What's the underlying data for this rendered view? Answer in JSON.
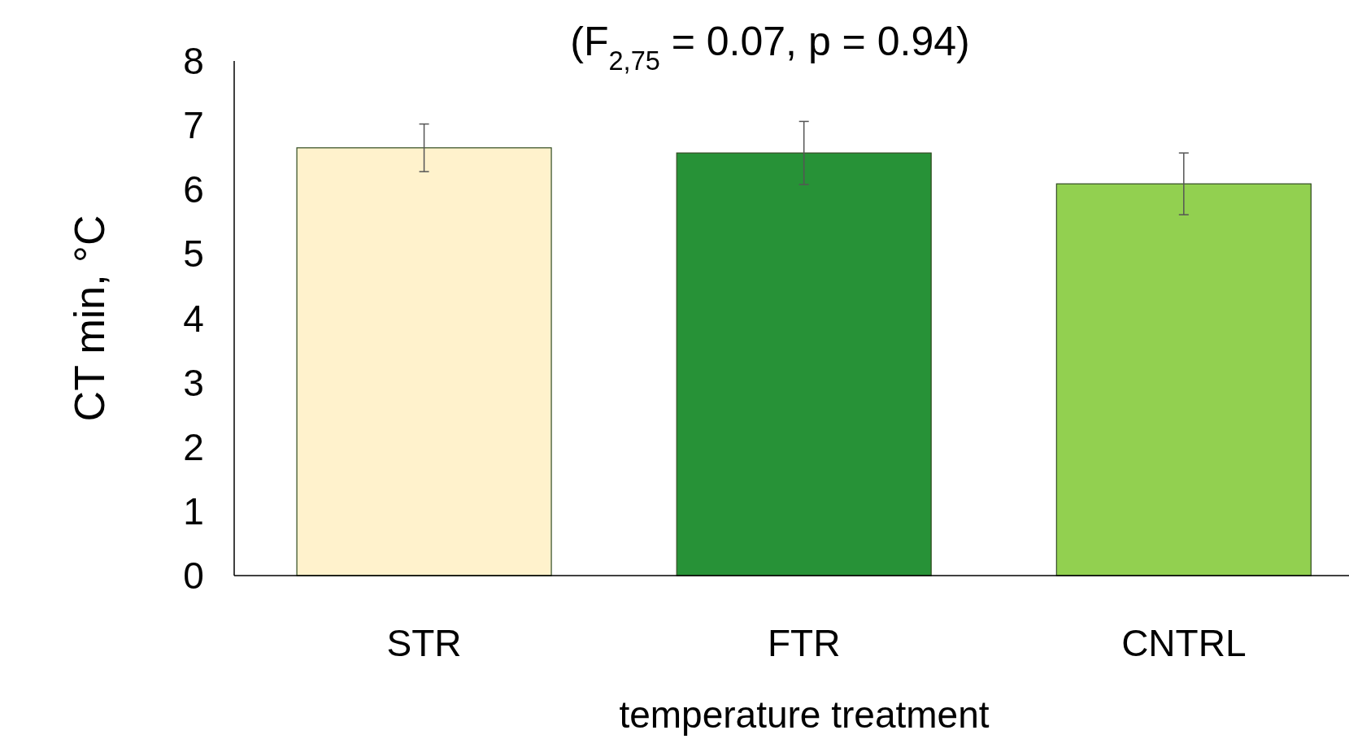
{
  "chart_data": {
    "type": "bar",
    "title": "(F$_{2,75}$ = 0.07, p = 0.94)",
    "xlabel": "temperature treatment",
    "ylabel": "CT min, °C",
    "categories": [
      "STR",
      "FTR",
      "CNTRL"
    ],
    "values": [
      6.65,
      6.57,
      6.09
    ],
    "errors": [
      0.37,
      0.49,
      0.48
    ],
    "colors": [
      "#fff2cc",
      "#279237",
      "#92d050"
    ],
    "ylim": [
      0,
      8
    ],
    "yticks": [
      0,
      1,
      2,
      3,
      4,
      5,
      6,
      7,
      8
    ],
    "grid": false
  }
}
